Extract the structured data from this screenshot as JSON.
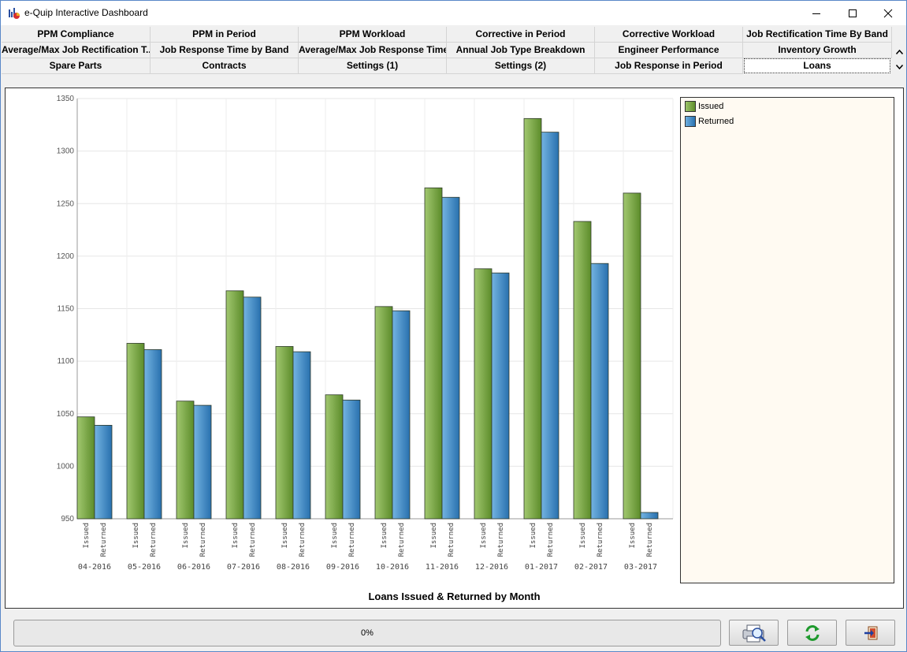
{
  "window": {
    "title": "e-Quip Interactive Dashboard",
    "minimize_icon": "minimize-icon",
    "maximize_icon": "maximize-icon",
    "close_icon": "close-icon"
  },
  "tabs": {
    "rows": [
      [
        "PPM Compliance",
        "PPM in Period",
        "PPM Workload",
        "Corrective in Period",
        "Corrective Workload",
        "Job Rectification Time By Band"
      ],
      [
        "Average/Max Job Rectification T...",
        "Job Response Time by Band",
        "Average/Max Job Response Time",
        "Annual Job Type Breakdown",
        "Engineer Performance",
        "Inventory Growth"
      ],
      [
        "Spare Parts",
        "Contracts",
        "Settings (1)",
        "Settings (2)",
        "Job Response in Period",
        "Loans"
      ]
    ],
    "active": "Loans"
  },
  "chart_data": {
    "type": "bar",
    "title": "Loans Issued & Returned by Month",
    "categories": [
      "04-2016",
      "05-2016",
      "06-2016",
      "07-2016",
      "08-2016",
      "09-2016",
      "10-2016",
      "11-2016",
      "12-2016",
      "01-2017",
      "02-2017",
      "03-2017"
    ],
    "series": [
      {
        "name": "Issued",
        "values": [
          1047,
          1117,
          1062,
          1167,
          1114,
          1068,
          1152,
          1265,
          1188,
          1331,
          1233,
          1260
        ],
        "color": "#6e9f3a"
      },
      {
        "name": "Returned",
        "values": [
          1039,
          1111,
          1058,
          1161,
          1109,
          1063,
          1148,
          1256,
          1184,
          1318,
          1193,
          956
        ],
        "color": "#3a86c2"
      }
    ],
    "ylim": [
      950,
      1350
    ],
    "yticks": [
      950,
      1000,
      1050,
      1100,
      1150,
      1200,
      1250,
      1300,
      1350
    ],
    "grid": true,
    "legend": "right"
  },
  "footer": {
    "progress": "0%",
    "progress_value": 0,
    "print_preview_icon": "print-preview-icon",
    "refresh_icon": "refresh-icon",
    "exit_icon": "exit-icon"
  },
  "colors": {
    "issued": "#6e9f3a",
    "returned": "#3a86c2",
    "legend_bg": "#fffaf2"
  }
}
